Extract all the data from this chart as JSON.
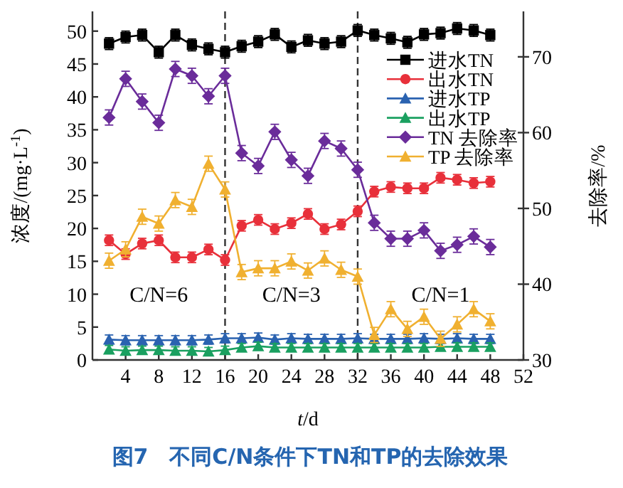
{
  "chart_data": {
    "type": "line",
    "x": [
      2,
      4,
      6,
      8,
      10,
      12,
      14,
      16,
      18,
      20,
      22,
      24,
      26,
      28,
      30,
      32,
      34,
      36,
      38,
      40,
      42,
      44,
      46,
      48
    ],
    "series": [
      {
        "name": "进水TN",
        "color": "#000000",
        "marker": "square",
        "errors": [
          0.9,
          0.9,
          0.9,
          0.9,
          0.9,
          0.9,
          0.9,
          0.9,
          0.9,
          0.9,
          0.9,
          0.9,
          0.9,
          0.9,
          0.9,
          0.9,
          0.9,
          0.9,
          0.9,
          0.9,
          0.9,
          0.9,
          0.9,
          0.9
        ],
        "values": [
          48.1,
          49.1,
          49.4,
          46.8,
          49.4,
          47.9,
          47.3,
          46.8,
          47.7,
          48.4,
          49.5,
          47.6,
          48.6,
          48.1,
          48.4,
          50.1,
          49.4,
          48.9,
          48.3,
          49.5,
          49.7,
          50.4,
          50.1,
          49.4
        ]
      },
      {
        "name": "出水TN",
        "color": "#e8303a",
        "marker": "circle",
        "errors": [
          0.8,
          0.8,
          0.8,
          0.8,
          0.8,
          0.8,
          0.8,
          0.8,
          0.8,
          0.8,
          0.8,
          0.8,
          0.8,
          0.8,
          0.8,
          0.8,
          0.8,
          0.8,
          0.8,
          0.8,
          0.8,
          0.8,
          0.8,
          0.8
        ],
        "values": [
          18.2,
          16.1,
          17.7,
          18.2,
          15.6,
          15.6,
          16.8,
          15.2,
          20.4,
          21.3,
          19.9,
          20.8,
          22.2,
          19.9,
          20.6,
          22.6,
          25.6,
          26.3,
          26.1,
          26.1,
          27.7,
          27.4,
          26.9,
          27.1
        ]
      },
      {
        "name": "进水TP",
        "color": "#2a62b0",
        "marker": "triangle",
        "errors": [
          0.7,
          0.7,
          0.7,
          0.7,
          0.7,
          0.7,
          0.7,
          0.7,
          0.7,
          0.7,
          0.7,
          0.7,
          0.7,
          0.7,
          0.7,
          0.7,
          0.7,
          0.7,
          0.7,
          0.7,
          0.7,
          0.7,
          0.7,
          0.7
        ],
        "values": [
          3.1,
          3.0,
          3.0,
          3.0,
          3.0,
          3.0,
          3.1,
          3.3,
          3.3,
          3.4,
          3.1,
          3.3,
          3.2,
          3.2,
          3.2,
          3.3,
          3.2,
          3.2,
          3.2,
          3.3,
          3.2,
          3.3,
          3.2,
          3.2
        ]
      },
      {
        "name": "出水TP",
        "color": "#1aa060",
        "marker": "triangle",
        "errors": [
          0.6,
          0.6,
          0.6,
          0.6,
          0.6,
          0.6,
          0.6,
          0.6,
          0.6,
          0.6,
          0.6,
          0.6,
          0.6,
          0.6,
          0.6,
          0.6,
          0.6,
          0.6,
          0.6,
          0.6,
          0.6,
          0.6,
          0.6,
          0.6
        ],
        "values": [
          1.6,
          1.4,
          1.5,
          1.5,
          1.4,
          1.4,
          1.3,
          1.5,
          1.9,
          2.1,
          1.9,
          1.9,
          1.9,
          1.9,
          1.9,
          1.9,
          1.9,
          1.9,
          1.9,
          1.9,
          2.0,
          2.0,
          2.0,
          2.0
        ]
      },
      {
        "name": "TN 去除率",
        "color": "#6a2c9a",
        "marker": "diamond",
        "axis": "y2",
        "errors": [
          1,
          1,
          1,
          1,
          1,
          1,
          1,
          1,
          1,
          1,
          1,
          1,
          1,
          1,
          1,
          1,
          1,
          1,
          1,
          1,
          1,
          1,
          1,
          1
        ],
        "values": [
          62.0,
          67.1,
          64.1,
          61.3,
          68.4,
          67.5,
          64.8,
          67.5,
          57.3,
          55.6,
          60.1,
          56.4,
          54.3,
          58.9,
          57.9,
          55.1,
          48.1,
          46.0,
          46.0,
          47.1,
          44.4,
          45.2,
          46.3,
          44.9
        ]
      },
      {
        "name": "TP 去除率",
        "color": "#f0b030",
        "marker": "triangle",
        "axis": "y2",
        "errors": [
          1,
          1,
          1,
          1,
          1,
          1,
          1,
          1,
          1,
          1,
          1,
          1,
          1,
          1,
          1,
          1,
          1,
          1,
          1,
          1,
          1,
          1,
          1,
          1
        ],
        "values": [
          43.1,
          44.6,
          48.9,
          48.0,
          51.1,
          50.2,
          55.9,
          52.5,
          41.6,
          42.1,
          42.1,
          43.0,
          41.8,
          43.4,
          41.9,
          41.0,
          33.3,
          36.7,
          34.1,
          35.7,
          32.8,
          34.7,
          36.7,
          35.1
        ]
      }
    ],
    "xlabel": "*t*/d",
    "ylabel": "浓度/(mg·L$^{-1}$)",
    "y2label": "去除率/%",
    "xlim": [
      0,
      52
    ],
    "xticks": [
      4,
      8,
      12,
      16,
      20,
      24,
      28,
      32,
      36,
      40,
      44,
      48,
      52
    ],
    "ylim": [
      0,
      53
    ],
    "yticks": [
      0,
      5,
      10,
      15,
      20,
      25,
      30,
      35,
      40,
      45,
      50
    ],
    "y2lim": [
      30,
      76
    ],
    "y2ticks": [
      30,
      40,
      50,
      60,
      70
    ],
    "ref_lines": [
      {
        "axis": "x",
        "value": 16,
        "line_style": "dashed",
        "color": "#333333"
      },
      {
        "axis": "x",
        "value": 32,
        "line_style": "dashed",
        "color": "#333333"
      }
    ],
    "annotations": [
      "C/N=6",
      "C/N=3",
      "C/N=1",
      "图7　不同C/N条件下TN和TP的去除效果"
    ],
    "legend": "top right",
    "line_style": "solid",
    "grid": false
  }
}
